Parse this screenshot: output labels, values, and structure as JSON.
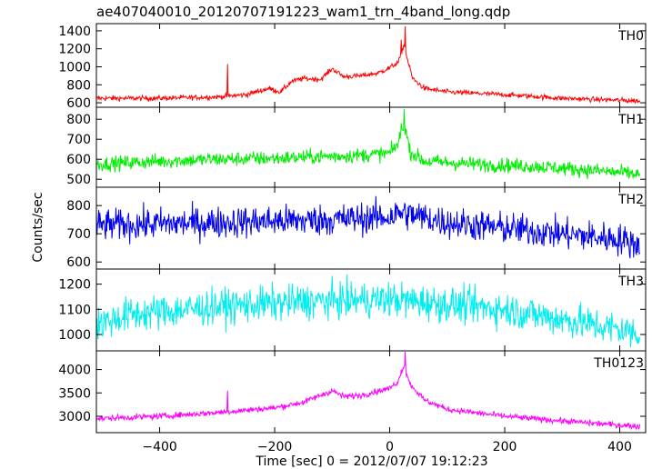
{
  "chart_data": {
    "type": "line",
    "title": "ae407040010_20120707191223_wam1_trn_4band_long.qdp",
    "xlabel": "Time [sec] 0 = 2012/07/07 19:12:23",
    "ylabel": "Counts/sec",
    "xlim": [
      -510,
      445
    ],
    "x_ticks": [
      -400,
      -200,
      0,
      200,
      400
    ],
    "x_tick_labels": [
      "−400",
      "−200",
      "0",
      "200",
      "400"
    ],
    "grid": false,
    "legend": "none",
    "x_start": -510,
    "x_end": 435,
    "x_step": 1,
    "panels": [
      {
        "name": "TH0",
        "color": "#ff0000",
        "ylim": [
          550,
          1480
        ],
        "y_ticks": [
          600,
          800,
          1000,
          1200,
          1400
        ],
        "noise": 20,
        "spikes": [
          [
            -282,
            1030
          ],
          [
            27,
            1450
          ],
          [
            20,
            1300
          ]
        ],
        "profile": [
          [
            -510,
            650
          ],
          [
            -400,
            650
          ],
          [
            -300,
            665
          ],
          [
            -250,
            690
          ],
          [
            -210,
            760
          ],
          [
            -190,
            720
          ],
          [
            -170,
            840
          ],
          [
            -150,
            870
          ],
          [
            -120,
            860
          ],
          [
            -100,
            980
          ],
          [
            -80,
            890
          ],
          [
            -50,
            900
          ],
          [
            -20,
            930
          ],
          [
            0,
            990
          ],
          [
            15,
            1050
          ],
          [
            25,
            1250
          ],
          [
            32,
            1050
          ],
          [
            40,
            870
          ],
          [
            60,
            760
          ],
          [
            100,
            720
          ],
          [
            200,
            690
          ],
          [
            300,
            650
          ],
          [
            435,
            620
          ]
        ]
      },
      {
        "name": "TH1",
        "color": "#00ee00",
        "ylim": [
          460,
          860
        ],
        "y_ticks": [
          500,
          600,
          700,
          800
        ],
        "noise": 26,
        "spikes": [
          [
            25,
            850
          ],
          [
            20,
            780
          ]
        ],
        "profile": [
          [
            -510,
            575
          ],
          [
            -400,
            590
          ],
          [
            -300,
            600
          ],
          [
            -200,
            605
          ],
          [
            -100,
            615
          ],
          [
            -50,
            620
          ],
          [
            0,
            630
          ],
          [
            15,
            680
          ],
          [
            25,
            790
          ],
          [
            35,
            640
          ],
          [
            60,
            590
          ],
          [
            150,
            575
          ],
          [
            250,
            565
          ],
          [
            350,
            545
          ],
          [
            435,
            525
          ]
        ]
      },
      {
        "name": "TH2",
        "color": "#0000ee",
        "ylim": [
          575,
          865
        ],
        "y_ticks": [
          600,
          700,
          800
        ],
        "noise": 40,
        "spikes": [],
        "profile": [
          [
            -510,
            730
          ],
          [
            -400,
            735
          ],
          [
            -300,
            740
          ],
          [
            -200,
            745
          ],
          [
            -100,
            750
          ],
          [
            0,
            760
          ],
          [
            20,
            775
          ],
          [
            100,
            740
          ],
          [
            200,
            720
          ],
          [
            300,
            700
          ],
          [
            400,
            680
          ],
          [
            435,
            660
          ]
        ]
      },
      {
        "name": "TH3",
        "color": "#00eeee",
        "ylim": [
          935,
          1260
        ],
        "y_ticks": [
          1000,
          1100,
          1200
        ],
        "noise": 50,
        "spikes": [],
        "profile": [
          [
            -510,
            1040
          ],
          [
            -450,
            1080
          ],
          [
            -300,
            1110
          ],
          [
            -150,
            1130
          ],
          [
            0,
            1140
          ],
          [
            100,
            1120
          ],
          [
            200,
            1100
          ],
          [
            300,
            1060
          ],
          [
            400,
            1020
          ],
          [
            435,
            1000
          ]
        ]
      },
      {
        "name": "TH0123",
        "color": "#ff00ff",
        "ylim": [
          2650,
          4400
        ],
        "y_ticks": [
          3000,
          3500,
          4000
        ],
        "noise": 45,
        "spikes": [
          [
            -282,
            3550
          ],
          [
            27,
            4380
          ],
          [
            20,
            4000
          ]
        ],
        "profile": [
          [
            -510,
            2950
          ],
          [
            -400,
            3000
          ],
          [
            -300,
            3080
          ],
          [
            -200,
            3180
          ],
          [
            -150,
            3300
          ],
          [
            -100,
            3550
          ],
          [
            -80,
            3420
          ],
          [
            -50,
            3450
          ],
          [
            0,
            3600
          ],
          [
            15,
            3750
          ],
          [
            25,
            4100
          ],
          [
            35,
            3700
          ],
          [
            60,
            3350
          ],
          [
            100,
            3150
          ],
          [
            200,
            3000
          ],
          [
            300,
            2900
          ],
          [
            435,
            2780
          ]
        ]
      }
    ]
  }
}
